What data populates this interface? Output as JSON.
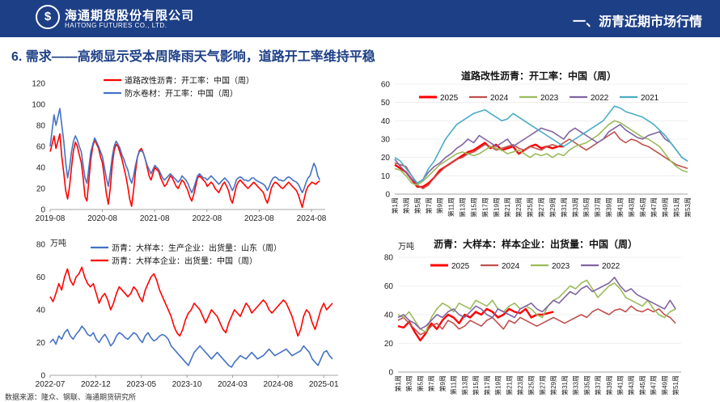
{
  "header": {
    "logo_glyph": "$",
    "company_name": "海通期货股份有限公司",
    "company_name_en": "HAITONG FUTURES CO., LTD.",
    "section_title": "一、沥青近期市场行情"
  },
  "slide_title": "6. 需求——高频显示受本周降雨天气影响，道路开工率维持平稳",
  "source_note": "数据来源：隆众、钢联、海通期货研究所",
  "colors": {
    "header_bg": "#1d3f86",
    "title": "#1d3f86",
    "red": "#ff0000",
    "blue": "#4472c4",
    "green": "#9bbb59",
    "purple": "#8064a2",
    "teal": "#4bacc6"
  },
  "chart_data": [
    {
      "id": "tl",
      "type": "line",
      "title": "",
      "ylabel": "",
      "ylim": [
        0,
        120
      ],
      "yticks": [
        0,
        20,
        40,
        60,
        80,
        100,
        120
      ],
      "x_tick_labels": [
        "2019-08",
        "2020-08",
        "2021-08",
        "2022-08",
        "2023-08",
        "2024-08"
      ],
      "legend_position": "top-center",
      "series": [
        {
          "name": "道路改性沥青：开工率：中国（周）",
          "color": "#ff0000",
          "values": [
            55,
            62,
            70,
            58,
            65,
            72,
            50,
            35,
            18,
            10,
            22,
            40,
            56,
            64,
            60,
            52,
            45,
            30,
            12,
            8,
            28,
            48,
            60,
            66,
            62,
            58,
            50,
            44,
            30,
            15,
            5,
            20,
            42,
            56,
            62,
            60,
            54,
            48,
            40,
            32,
            22,
            10,
            3,
            18,
            36,
            50,
            56,
            58,
            54,
            48,
            40,
            32,
            28,
            34,
            40,
            38,
            36,
            30,
            26,
            22,
            24,
            28,
            32,
            30,
            26,
            22,
            20,
            24,
            28,
            26,
            22,
            18,
            12,
            8,
            14,
            22,
            30,
            32,
            30,
            28,
            26,
            22,
            24,
            26,
            24,
            20,
            18,
            16,
            20,
            24,
            26,
            22,
            18,
            10,
            6,
            14,
            22,
            26,
            28,
            26,
            24,
            22,
            20,
            22,
            24,
            26,
            24,
            22,
            20,
            18,
            16,
            10,
            6,
            12,
            20,
            24,
            26,
            25,
            23,
            21,
            20,
            22,
            24,
            26,
            24,
            22,
            20,
            18,
            14,
            8,
            2,
            10,
            18,
            22,
            24,
            26,
            25,
            24,
            26,
            27
          ]
        },
        {
          "name": "防水卷材：开工率：中国（周）",
          "color": "#4472c4",
          "values": [
            60,
            75,
            90,
            80,
            88,
            96,
            80,
            65,
            45,
            30,
            40,
            55,
            65,
            70,
            66,
            60,
            55,
            42,
            30,
            25,
            40,
            55,
            62,
            68,
            64,
            60,
            55,
            50,
            40,
            30,
            22,
            35,
            50,
            60,
            65,
            62,
            58,
            52,
            48,
            42,
            38,
            30,
            25,
            32,
            42,
            50,
            55,
            56,
            54,
            48,
            42,
            38,
            34,
            38,
            42,
            40,
            38,
            34,
            30,
            28,
            30,
            32,
            34,
            32,
            30,
            28,
            26,
            28,
            32,
            30,
            28,
            25,
            20,
            16,
            20,
            26,
            32,
            34,
            32,
            30,
            30,
            28,
            30,
            32,
            30,
            28,
            26,
            24,
            26,
            28,
            30,
            28,
            26,
            22,
            18,
            22,
            28,
            30,
            31,
            30,
            28,
            28,
            27,
            28,
            30,
            30,
            28,
            27,
            26,
            25,
            24,
            22,
            18,
            22,
            27,
            30,
            31,
            30,
            28,
            28,
            27,
            28,
            30,
            31,
            30,
            28,
            27,
            26,
            24,
            20,
            16,
            20,
            26,
            30,
            32,
            38,
            44,
            40,
            32,
            28
          ]
        }
      ]
    },
    {
      "id": "bl",
      "type": "line",
      "title": "",
      "ylabel": "万吨",
      "ylim": [
        0,
        80
      ],
      "yticks": [
        0,
        20,
        40,
        60,
        80
      ],
      "x_tick_labels": [
        "2022-07",
        "2022-12",
        "2023-05",
        "2023-10",
        "2024-03",
        "2024-08",
        "2025-01"
      ],
      "legend_position": "top-center",
      "series": [
        {
          "name": "沥青：大样本：生产企业：出货量：山东（周）",
          "color": "#4472c4",
          "values": [
            20,
            22,
            19,
            24,
            22,
            26,
            28,
            24,
            22,
            25,
            27,
            30,
            28,
            25,
            24,
            26,
            22,
            20,
            23,
            25,
            22,
            18,
            20,
            24,
            26,
            25,
            23,
            22,
            24,
            26,
            25,
            22,
            20,
            24,
            26,
            23,
            21,
            22,
            24,
            25,
            24,
            22,
            18,
            16,
            14,
            12,
            10,
            8,
            6,
            10,
            14,
            16,
            18,
            16,
            14,
            12,
            10,
            12,
            14,
            12,
            10,
            8,
            6,
            5,
            8,
            10,
            12,
            11,
            10,
            12,
            14,
            12,
            10,
            11,
            12,
            14,
            16,
            14,
            12,
            13,
            14,
            15,
            16,
            14,
            12,
            13,
            14,
            15,
            18,
            16,
            14,
            10,
            8,
            6,
            10,
            14,
            15,
            12,
            10
          ]
        },
        {
          "name": "沥青：大样本企业：出货量：中国（周）",
          "color": "#ff0000",
          "values": [
            48,
            45,
            50,
            56,
            52,
            60,
            65,
            58,
            55,
            60,
            62,
            66,
            60,
            56,
            54,
            56,
            50,
            44,
            48,
            50,
            46,
            40,
            44,
            50,
            54,
            52,
            50,
            48,
            50,
            54,
            52,
            48,
            45,
            52,
            56,
            60,
            62,
            58,
            52,
            48,
            44,
            40,
            36,
            30,
            26,
            24,
            28,
            34,
            38,
            40,
            44,
            42,
            40,
            36,
            32,
            36,
            40,
            38,
            36,
            32,
            28,
            26,
            32,
            36,
            40,
            38,
            36,
            40,
            44,
            42,
            38,
            40,
            42,
            44,
            46,
            44,
            40,
            38,
            40,
            42,
            44,
            46,
            44,
            40,
            36,
            30,
            24,
            28,
            36,
            40,
            38,
            32,
            28,
            34,
            40,
            44,
            40,
            42,
            44
          ]
        }
      ]
    },
    {
      "id": "tr",
      "type": "line",
      "title": "道路改性沥青：开工率：中国（周）",
      "ylabel": "",
      "ylim": [
        0,
        60
      ],
      "yticks": [
        0,
        10,
        20,
        30,
        40,
        50,
        60
      ],
      "x_tick_labels": [
        "第1周",
        "第3周",
        "第5周",
        "第7周",
        "第9周",
        "第11周",
        "第13周",
        "第15周",
        "第17周",
        "第19周",
        "第21周",
        "第23周",
        "第25周",
        "第27周",
        "第29周",
        "第31周",
        "第33周",
        "第35周",
        "第37周",
        "第39周",
        "第41周",
        "第43周",
        "第45周",
        "第47周",
        "第49周",
        "第51周",
        "第53周"
      ],
      "legend_position": "top",
      "series": [
        {
          "name": "2025",
          "color": "#ff0000",
          "values": [
            16,
            14,
            12,
            8,
            4,
            4,
            6,
            9,
            13,
            15,
            17,
            19,
            21,
            23,
            24,
            26,
            28,
            25,
            27,
            24,
            25,
            26,
            22,
            24,
            26,
            27,
            25,
            26,
            25,
            26,
            26
          ]
        },
        {
          "name": "2024",
          "color": "#c0504d",
          "values": [
            17,
            16,
            15,
            10,
            5,
            3,
            5,
            9,
            12,
            15,
            17,
            19,
            20,
            22,
            23,
            25,
            27,
            26,
            24,
            25,
            26,
            27,
            25,
            24,
            26,
            25,
            24,
            26,
            27,
            26,
            28,
            30,
            28,
            26,
            24,
            26,
            28,
            30,
            32,
            34,
            30,
            28,
            30,
            29,
            27,
            26,
            24,
            22,
            20,
            18,
            16,
            15,
            14
          ]
        },
        {
          "name": "2023",
          "color": "#9bbb59",
          "values": [
            14,
            13,
            10,
            6,
            5,
            7,
            10,
            13,
            16,
            18,
            20,
            22,
            23,
            22,
            21,
            22,
            24,
            26,
            25,
            24,
            22,
            23,
            24,
            22,
            20,
            22,
            21,
            22,
            20,
            22,
            21,
            24,
            26,
            27,
            28,
            30,
            32,
            35,
            38,
            40,
            39,
            37,
            35,
            33,
            31,
            30,
            28,
            26,
            22,
            18,
            15,
            13,
            12
          ]
        },
        {
          "name": "2022",
          "color": "#8064a2",
          "values": [
            19,
            15,
            12,
            8,
            6,
            8,
            12,
            15,
            17,
            20,
            22,
            25,
            27,
            30,
            28,
            32,
            30,
            28,
            26,
            28,
            30,
            26,
            28,
            30,
            32,
            34,
            36,
            35,
            34,
            32,
            30,
            34,
            36,
            34,
            32,
            30,
            28,
            30,
            34,
            36,
            38,
            35,
            33,
            31,
            30,
            32,
            33,
            34,
            30,
            28,
            24,
            20,
            18
          ]
        },
        {
          "name": "2021",
          "color": "#4bacc6",
          "values": [
            20,
            18,
            14,
            10,
            6,
            8,
            14,
            18,
            24,
            30,
            34,
            38,
            40,
            42,
            44,
            45,
            46,
            44,
            42,
            40,
            41,
            44,
            42,
            40,
            38,
            36,
            34,
            32,
            30,
            28,
            26,
            28,
            30,
            32,
            34,
            36,
            38,
            40,
            44,
            48,
            47,
            45,
            44,
            43,
            42,
            40,
            38,
            35,
            32,
            28,
            24,
            20,
            18
          ]
        }
      ]
    },
    {
      "id": "br",
      "type": "line",
      "title": "沥青：大样本：样本企业：出货量：中国（周）",
      "ylabel": "万吨",
      "ylim": [
        0,
        80
      ],
      "yticks": [
        0,
        20,
        40,
        60,
        80
      ],
      "x_tick_labels": [
        "第1周",
        "第3周",
        "第5周",
        "第7周",
        "第9周",
        "第11周",
        "第13周",
        "第15周",
        "第17周",
        "第19周",
        "第21周",
        "第23周",
        "第25周",
        "第27周",
        "第29周",
        "第31周",
        "第33周",
        "第35周",
        "第37周",
        "第39周",
        "第41周",
        "第43周",
        "第45周",
        "第47周",
        "第49周",
        "第51周"
      ],
      "legend_position": "top",
      "series": [
        {
          "name": "2025",
          "color": "#ff0000",
          "values": [
            32,
            31,
            35,
            28,
            22,
            27,
            34,
            30,
            36,
            40,
            38,
            34,
            40,
            38,
            42,
            40,
            44,
            42,
            38,
            40,
            44,
            42,
            41,
            44,
            38,
            40,
            40,
            41,
            42
          ]
        },
        {
          "name": "2024",
          "color": "#c0504d",
          "values": [
            36,
            38,
            34,
            30,
            26,
            28,
            32,
            34,
            30,
            36,
            34,
            30,
            32,
            36,
            34,
            32,
            36,
            38,
            34,
            30,
            36,
            34,
            38,
            36,
            34,
            32,
            34,
            36,
            38,
            36,
            34,
            36,
            38,
            40,
            38,
            42,
            44,
            42,
            40,
            43,
            44,
            42,
            46,
            43,
            42,
            44,
            42,
            44,
            40,
            38,
            34
          ]
        },
        {
          "name": "2023",
          "color": "#9bbb59",
          "values": [
            40,
            38,
            42,
            36,
            30,
            28,
            38,
            44,
            48,
            46,
            42,
            48,
            46,
            44,
            50,
            48,
            46,
            50,
            44,
            42,
            46,
            48,
            44,
            46,
            44,
            40,
            38,
            46,
            50,
            52,
            56,
            60,
            58,
            62,
            64,
            58,
            52,
            56,
            60,
            62,
            58,
            52,
            50,
            48,
            46,
            50,
            44,
            40,
            38,
            42,
            44
          ]
        },
        {
          "name": "2022",
          "color": "#8064a2",
          "values": [
            38,
            40,
            36,
            34,
            30,
            32,
            36,
            40,
            38,
            42,
            44,
            40,
            38,
            42,
            46,
            44,
            40,
            38,
            44,
            42,
            40,
            38,
            44,
            46,
            48,
            44,
            42,
            46,
            50,
            48,
            52,
            56,
            54,
            58,
            60,
            56,
            58,
            60,
            62,
            66,
            60,
            56,
            58,
            54,
            52,
            50,
            48,
            46,
            44,
            50,
            44
          ]
        }
      ]
    }
  ]
}
